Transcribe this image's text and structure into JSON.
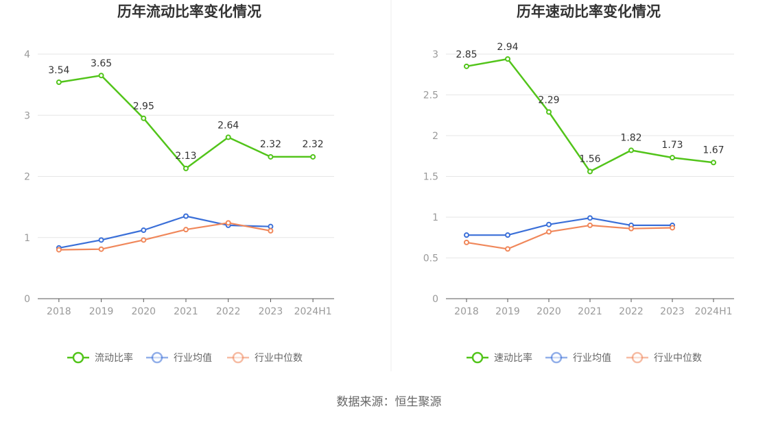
{
  "source": "数据来源：恒生聚源",
  "colors": {
    "main": "#52c41a",
    "avg": "#3a6fd8",
    "median": "#f0875a",
    "grid": "#e6e6e6",
    "axis": "#555555"
  },
  "chart_data": [
    {
      "type": "line",
      "title": "历年流动比率变化情况",
      "categories": [
        "2018",
        "2019",
        "2020",
        "2021",
        "2022",
        "2023",
        "2024H1"
      ],
      "ylim": [
        0,
        4
      ],
      "yticks": [
        "0",
        "1",
        "2",
        "3",
        "4"
      ],
      "grid": true,
      "legend_position": "bottom",
      "series": [
        {
          "name": "流动比率",
          "color": "#52c41a",
          "labeled": true,
          "values": [
            3.54,
            3.65,
            2.95,
            2.13,
            2.64,
            2.32,
            2.32
          ],
          "labels": [
            "3.54",
            "3.65",
            "2.95",
            "2.13",
            "2.64",
            "2.32",
            "2.32"
          ]
        },
        {
          "name": "行业均值",
          "color": "#3a6fd8",
          "labeled": false,
          "values": [
            0.83,
            0.96,
            1.12,
            1.35,
            1.2,
            1.18,
            null
          ]
        },
        {
          "name": "行业中位数",
          "color": "#f0875a",
          "labeled": false,
          "values": [
            0.8,
            0.81,
            0.96,
            1.13,
            1.24,
            1.11,
            null
          ]
        }
      ]
    },
    {
      "type": "line",
      "title": "历年速动比率变化情况",
      "categories": [
        "2018",
        "2019",
        "2020",
        "2021",
        "2022",
        "2023",
        "2024H1"
      ],
      "ylim": [
        0,
        3
      ],
      "yticks": [
        "0",
        "0.5",
        "1",
        "1.5",
        "2",
        "2.5",
        "3"
      ],
      "grid": true,
      "legend_position": "bottom",
      "series": [
        {
          "name": "速动比率",
          "color": "#52c41a",
          "labeled": true,
          "values": [
            2.85,
            2.94,
            2.29,
            1.56,
            1.82,
            1.73,
            1.67
          ],
          "labels": [
            "2.85",
            "2.94",
            "2.29",
            "1.56",
            "1.82",
            "1.73",
            "1.67"
          ]
        },
        {
          "name": "行业均值",
          "color": "#3a6fd8",
          "labeled": false,
          "values": [
            0.78,
            0.78,
            0.91,
            0.99,
            0.9,
            0.9,
            null
          ]
        },
        {
          "name": "行业中位数",
          "color": "#f0875a",
          "labeled": false,
          "values": [
            0.69,
            0.61,
            0.82,
            0.9,
            0.86,
            0.87,
            null
          ]
        }
      ]
    }
  ]
}
